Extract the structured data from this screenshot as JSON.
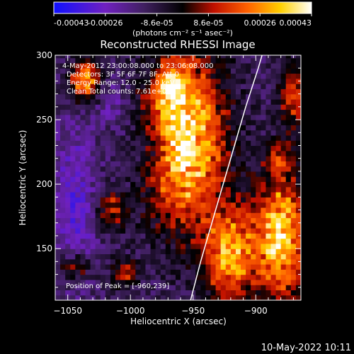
{
  "chart_data": {
    "type": "heatmap",
    "title": "Reconstructed RHESSI Image",
    "xlabel": "Heliocentric X (arcsec)",
    "ylabel": "Heliocentric Y (arcsec)",
    "xlim": [
      -1060,
      -864
    ],
    "ylim": [
      110,
      300
    ],
    "x_ticks": [
      -1050,
      -1000,
      -950,
      -900
    ],
    "y_ticks": [
      150,
      200,
      250,
      300
    ],
    "colorbar": {
      "ticks": [
        "-0.00043",
        "-0.00026",
        "-8.6e-05",
        "8.6e-05",
        "0.00026",
        "0.00043"
      ],
      "unit_label": "(photons cm⁻² s⁻¹ asec⁻²)",
      "range": [
        -0.00043,
        0.00043
      ],
      "colors": [
        "#1010ff",
        "#7020c0",
        "#402060",
        "#000000",
        "#c01000",
        "#ff6000",
        "#ffd000",
        "#ffffff"
      ]
    },
    "annotations": [
      "4-May-2012 23:00:08.000 to 23:06:08.000",
      "Detectors: 3F 5F 6F 7F 8F, Att 0",
      "Energy Range: 12.0 - 25.0 keV",
      "Clean    Total counts: 7.61e+03"
    ],
    "peak_label": "Position of Peak = [-960,239]",
    "peak": [
      -960,
      239
    ],
    "limb_curve": [
      [
        -952,
        110
      ],
      [
        -944,
        140
      ],
      [
        -935,
        170
      ],
      [
        -926,
        200
      ],
      [
        -917,
        230
      ],
      [
        -908,
        260
      ],
      [
        -898,
        290
      ],
      [
        -895,
        300
      ]
    ],
    "sources": [
      {
        "x": -957,
        "y": 235,
        "sx": 22,
        "sy": 45,
        "amp": 1.0
      },
      {
        "x": -1036,
        "y": 280,
        "sx": 8,
        "sy": 12,
        "amp": 0.75
      },
      {
        "x": -968,
        "y": 275,
        "sx": 7,
        "sy": 10,
        "amp": 0.55
      },
      {
        "x": -1015,
        "y": 180,
        "sx": 8,
        "sy": 10,
        "amp": 0.45
      },
      {
        "x": -1045,
        "y": 135,
        "sx": 8,
        "sy": 8,
        "amp": 0.45
      },
      {
        "x": -1005,
        "y": 130,
        "sx": 8,
        "sy": 8,
        "amp": 0.4
      },
      {
        "x": -880,
        "y": 160,
        "sx": 14,
        "sy": 35,
        "amp": 0.85
      },
      {
        "x": -920,
        "y": 145,
        "sx": 15,
        "sy": 25,
        "amp": 0.75
      },
      {
        "x": -870,
        "y": 270,
        "sx": 8,
        "sy": 18,
        "amp": 0.5
      },
      {
        "x": -880,
        "y": 220,
        "sx": 8,
        "sy": 8,
        "amp": 0.35
      }
    ],
    "negative_regions": [
      {
        "x": -1045,
        "y": 185,
        "sx": 12,
        "sy": 45,
        "amp": 0.55
      },
      {
        "x": -985,
        "y": 225,
        "sx": 14,
        "sy": 16,
        "amp": 0.4
      },
      {
        "x": -1015,
        "y": 265,
        "sx": 10,
        "sy": 14,
        "amp": 0.35
      }
    ]
  },
  "timestamp": "10-May-2022 10:11"
}
